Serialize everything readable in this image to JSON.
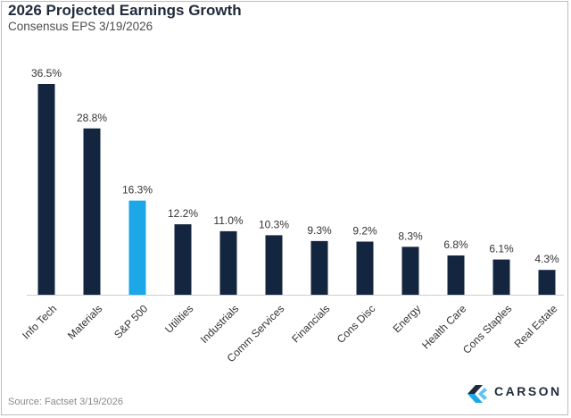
{
  "chart_data": {
    "type": "bar",
    "title": "2026 Projected Earnings Growth",
    "subtitle": "Consensus EPS 3/19/2026",
    "xlabel": "",
    "ylabel": "",
    "categories": [
      "Info Tech",
      "Materials",
      "S&P 500",
      "Utilities",
      "Industrials",
      "Comm Services",
      "Financials",
      "Cons Disc",
      "Energy",
      "Health Care",
      "Cons Staples",
      "Real Estate"
    ],
    "values": [
      36.5,
      28.8,
      16.3,
      12.2,
      11.0,
      10.3,
      9.3,
      9.2,
      8.3,
      6.8,
      6.1,
      4.3
    ],
    "data_labels": [
      "36.5%",
      "28.8%",
      "16.3%",
      "12.2%",
      "11.0%",
      "10.3%",
      "9.3%",
      "9.2%",
      "8.3%",
      "6.8%",
      "6.1%",
      "4.3%"
    ],
    "ylim": [
      0,
      40
    ],
    "grid": false,
    "legend": "none",
    "colors": {
      "bar": "#13253f",
      "highlight": "#1ba7e8",
      "highlight_category": "S&P 500"
    }
  },
  "footer": {
    "source": "Source: Factset 3/19/2026",
    "logo_text": "CARSON"
  }
}
